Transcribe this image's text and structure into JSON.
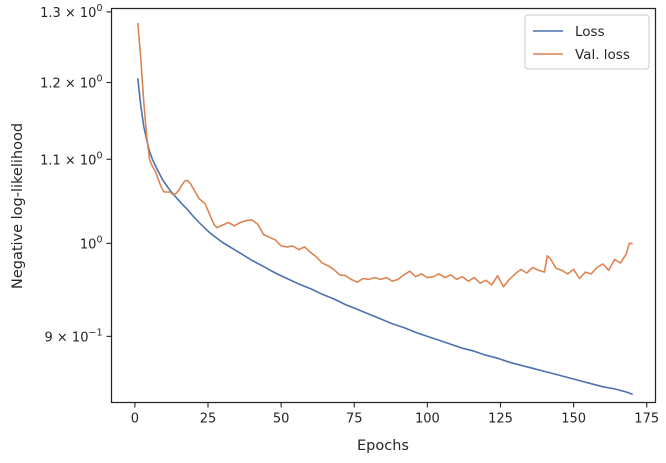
{
  "chart_data": {
    "type": "line",
    "title": "",
    "xlabel": "Epochs",
    "ylabel": "Negative log-likelihood",
    "xlim": [
      -8,
      178
    ],
    "ylim": [
      0.835,
      1.305
    ],
    "yscale": "log",
    "grid": false,
    "legend_position": "top-right",
    "x_ticks": [
      0,
      25,
      50,
      75,
      100,
      125,
      150,
      175
    ],
    "x_tick_labels": [
      "0",
      "25",
      "50",
      "75",
      "100",
      "125",
      "150",
      "175"
    ],
    "y_ticks": [
      {
        "value": 0.9,
        "mantissa": "9",
        "sep": "×",
        "base": "10",
        "exp": "−1"
      },
      {
        "value": 1.0,
        "mantissa": "",
        "sep": "",
        "base": "10",
        "exp": "0"
      },
      {
        "value": 1.1,
        "mantissa": "1.1",
        "sep": "×",
        "base": "10",
        "exp": "0"
      },
      {
        "value": 1.2,
        "mantissa": "1.2",
        "sep": "×",
        "base": "10",
        "exp": "0"
      },
      {
        "value": 1.3,
        "mantissa": "1.3",
        "sep": "×",
        "base": "10",
        "exp": "0"
      }
    ],
    "series": [
      {
        "name": "Loss",
        "color": "#4c72b0",
        "x": [
          1,
          2,
          3,
          4,
          5,
          6,
          7,
          8,
          9,
          10,
          12,
          14,
          16,
          18,
          20,
          22,
          24,
          26,
          28,
          30,
          32,
          34,
          36,
          38,
          40,
          44,
          48,
          52,
          56,
          60,
          64,
          68,
          72,
          76,
          80,
          84,
          88,
          92,
          96,
          100,
          104,
          108,
          112,
          116,
          120,
          124,
          128,
          132,
          136,
          140,
          144,
          148,
          152,
          156,
          160,
          164,
          168,
          170
        ],
        "y": [
          1.205,
          1.17,
          1.142,
          1.125,
          1.11,
          1.1,
          1.092,
          1.085,
          1.078,
          1.072,
          1.062,
          1.054,
          1.046,
          1.039,
          1.031,
          1.024,
          1.017,
          1.011,
          1.006,
          1.001,
          0.997,
          0.993,
          0.989,
          0.985,
          0.981,
          0.974,
          0.967,
          0.961,
          0.955,
          0.95,
          0.944,
          0.939,
          0.933,
          0.928,
          0.923,
          0.918,
          0.913,
          0.909,
          0.904,
          0.9,
          0.896,
          0.892,
          0.888,
          0.885,
          0.881,
          0.878,
          0.874,
          0.871,
          0.868,
          0.865,
          0.862,
          0.859,
          0.856,
          0.853,
          0.85,
          0.848,
          0.845,
          0.843
        ]
      },
      {
        "name": "Val. loss",
        "color": "#dd8452",
        "x": [
          1,
          2,
          3,
          4,
          5,
          6,
          7,
          8,
          9,
          10,
          11,
          12,
          13,
          14,
          15,
          16,
          17,
          18,
          19,
          20,
          21,
          22,
          23,
          24,
          25,
          26,
          27,
          28,
          30,
          32,
          34,
          36,
          38,
          40,
          42,
          44,
          46,
          48,
          50,
          52,
          54,
          56,
          58,
          60,
          62,
          64,
          66,
          68,
          70,
          72,
          74,
          76,
          78,
          80,
          82,
          84,
          86,
          88,
          90,
          92,
          94,
          96,
          98,
          100,
          102,
          104,
          106,
          108,
          110,
          112,
          114,
          116,
          118,
          120,
          122,
          124,
          126,
          128,
          130,
          132,
          134,
          136,
          138,
          140,
          141,
          142,
          144,
          146,
          148,
          150,
          152,
          154,
          156,
          158,
          160,
          162,
          164,
          166,
          168,
          169,
          170
        ],
        "y": [
          1.283,
          1.235,
          1.175,
          1.13,
          1.1,
          1.091,
          1.085,
          1.075,
          1.066,
          1.06,
          1.06,
          1.06,
          1.057,
          1.058,
          1.062,
          1.068,
          1.073,
          1.074,
          1.07,
          1.064,
          1.058,
          1.052,
          1.049,
          1.046,
          1.038,
          1.03,
          1.022,
          1.018,
          1.021,
          1.024,
          1.02,
          1.024,
          1.026,
          1.027,
          1.022,
          1.01,
          1.007,
          1.004,
          0.997,
          0.996,
          0.997,
          0.993,
          0.996,
          0.99,
          0.985,
          0.978,
          0.975,
          0.971,
          0.965,
          0.964,
          0.96,
          0.957,
          0.961,
          0.96,
          0.962,
          0.96,
          0.962,
          0.958,
          0.96,
          0.965,
          0.969,
          0.963,
          0.966,
          0.962,
          0.963,
          0.966,
          0.962,
          0.965,
          0.96,
          0.963,
          0.958,
          0.962,
          0.956,
          0.959,
          0.954,
          0.964,
          0.952,
          0.96,
          0.966,
          0.971,
          0.967,
          0.973,
          0.97,
          0.968,
          0.986,
          0.983,
          0.972,
          0.97,
          0.966,
          0.971,
          0.961,
          0.968,
          0.966,
          0.973,
          0.977,
          0.97,
          0.982,
          0.978,
          0.988,
          1.0,
          1.0
        ]
      }
    ]
  }
}
